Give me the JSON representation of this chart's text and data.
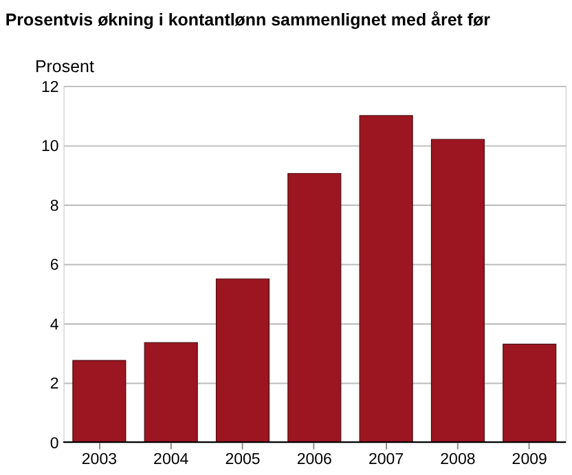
{
  "chart_data": {
    "type": "bar",
    "title": "Prosentvis økning i kontantlønn sammenlignet med året før",
    "ylabel": "Prosent",
    "categories": [
      "2003",
      "2004",
      "2005",
      "2006",
      "2007",
      "2008",
      "2009"
    ],
    "values": [
      2.75,
      3.35,
      5.5,
      9.05,
      11.0,
      10.2,
      3.3
    ],
    "color": "#9b1620",
    "ylim": [
      0,
      12
    ],
    "yticks": [
      0,
      2,
      4,
      6,
      8,
      10,
      12
    ],
    "grid": "y"
  }
}
